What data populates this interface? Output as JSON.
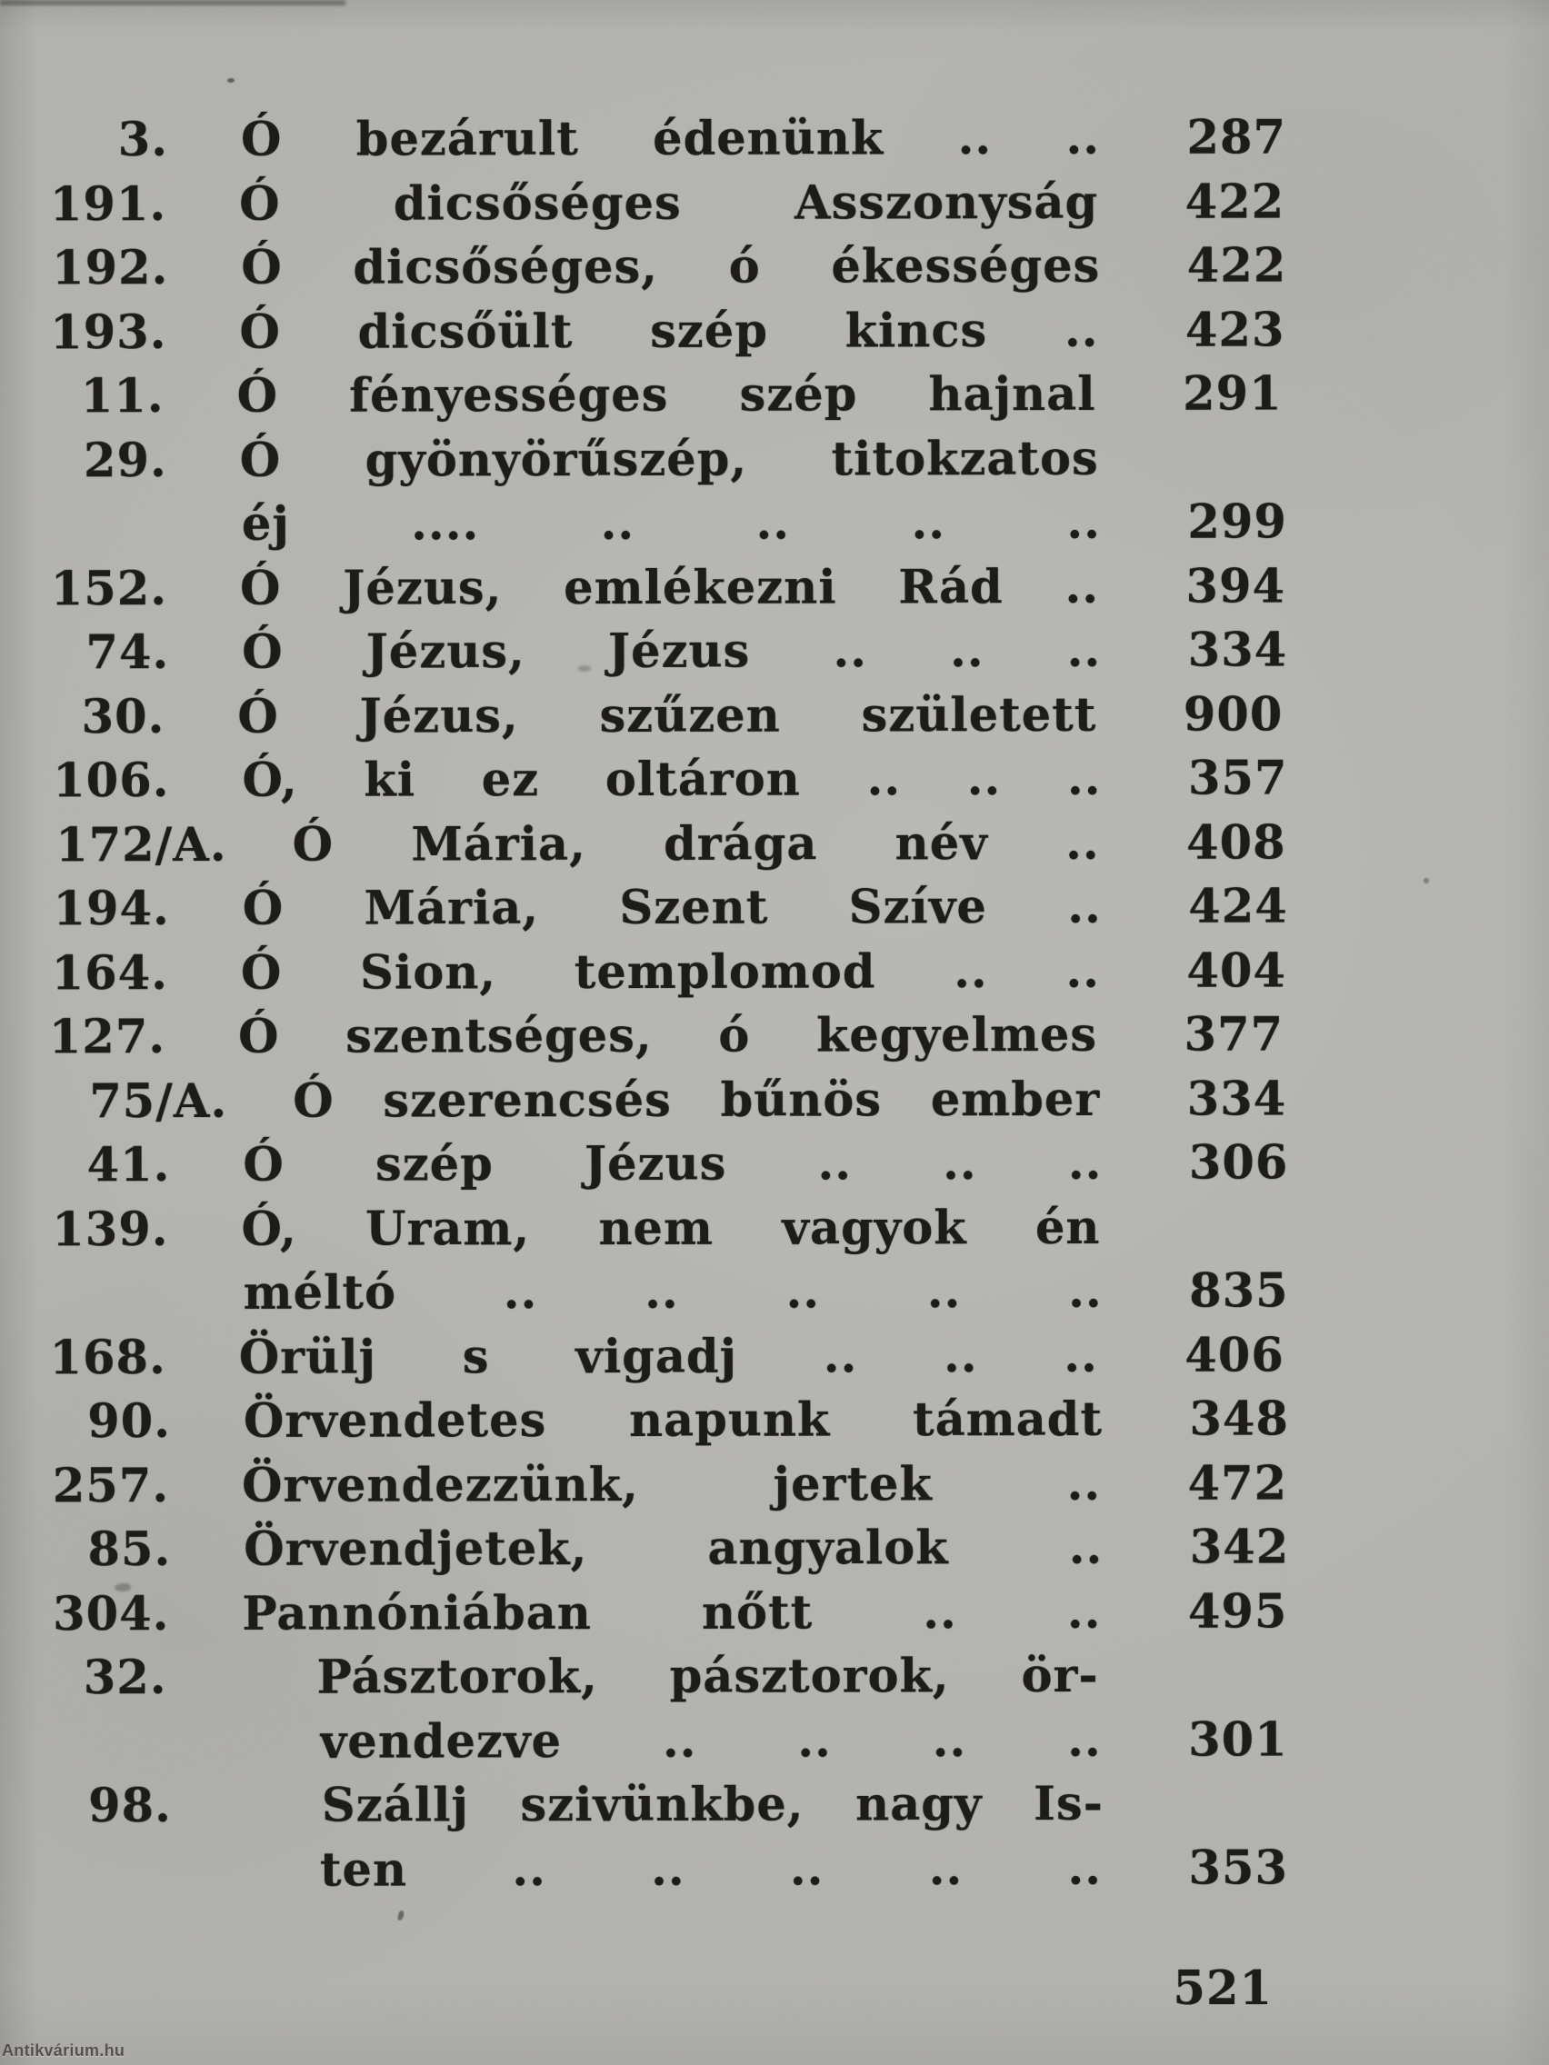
{
  "page": {
    "description": "Hungarian hymnal index page (song register)",
    "footer_page_number": "521",
    "watermark": "Antikvárium.hu",
    "colors": {
      "paper": "#b5b4b0",
      "ink": "#1d1c19"
    },
    "entries": [
      {
        "num": "3.",
        "title": "Ó bezárult édenünk .. ..",
        "page": "287",
        "style": ""
      },
      {
        "num": "191.",
        "title": "Ó dicsőséges Asszonyság",
        "page": "422",
        "style": ""
      },
      {
        "num": "192.",
        "title": "Ó dicsőséges, ó ékességes",
        "page": "422",
        "style": ""
      },
      {
        "num": "193.",
        "title": "Ó dicsőült szép kincs ..",
        "page": "423",
        "style": ""
      },
      {
        "num": "11.",
        "title": "Ó fényességes szép hajnal",
        "page": "291",
        "style": ""
      },
      {
        "num": "29.",
        "title": "Ó gyönyörűszép, titokzatos",
        "page": "",
        "style": ""
      },
      {
        "num": "",
        "title": "éj .... .. .. .. ..",
        "page": "299",
        "style": ""
      },
      {
        "num": "152.",
        "title": "Ó Jézus, emlékezni Rád ..",
        "page": "394",
        "style": ""
      },
      {
        "num": "74.",
        "title": "Ó Jézus, Jézus .. .. ..",
        "page": "334",
        "style": ""
      },
      {
        "num": "30.",
        "title": "Ó Jézus, szűzen született",
        "page": "900",
        "style": ""
      },
      {
        "num": "106.",
        "title": "Ó, ki ez oltáron .. .. ..",
        "page": "357",
        "style": ""
      },
      {
        "num": "172/A.",
        "title": "Ó Mária, drága név ..",
        "page": "408",
        "style": "wide-num"
      },
      {
        "num": "194.",
        "title": "Ó Mária, Szent Szíve ..",
        "page": "424",
        "style": ""
      },
      {
        "num": "164.",
        "title": "Ó Sion, templomod .. ..",
        "page": "404",
        "style": ""
      },
      {
        "num": "127.",
        "title": "Ó szentséges, ó kegyelmes",
        "page": "377",
        "style": ""
      },
      {
        "num": "75/A.",
        "title": "Ó szerencsés bűnös ember",
        "page": "334",
        "style": "wide-num"
      },
      {
        "num": "41.",
        "title": "Ó szép Jézus .. .. ..",
        "page": "306",
        "style": ""
      },
      {
        "num": "139.",
        "title": "Ó, Uram, nem vagyok én",
        "page": "",
        "style": ""
      },
      {
        "num": "",
        "title": "méltó .. .. .. .. ..",
        "page": "835",
        "style": ""
      },
      {
        "num": "168.",
        "title": "Örülj s vigadj .. .. ..",
        "page": "406",
        "style": ""
      },
      {
        "num": "90.",
        "title": "Örvendetes napunk támadt",
        "page": "348",
        "style": ""
      },
      {
        "num": "257.",
        "title": "Örvendezzünk, jertek ..",
        "page": "472",
        "style": ""
      },
      {
        "num": "85.",
        "title": "Örvendjetek, angyalok ..",
        "page": "342",
        "style": ""
      },
      {
        "num": "304.",
        "title": "Pannóniában nőtt .. ..",
        "page": "495",
        "style": ""
      },
      {
        "num": "32.",
        "title": "Pásztorok, pásztorok, ör-",
        "page": "",
        "style": "shift"
      },
      {
        "num": "",
        "title": "vendezve .. .. .. ..",
        "page": "301",
        "style": "shift"
      },
      {
        "num": "98.",
        "title": "Szállj szivünkbe, nagy Is-",
        "page": "",
        "style": "shift"
      },
      {
        "num": "",
        "title": "ten .. .. .. .. ..",
        "page": "353",
        "style": "shift"
      }
    ]
  }
}
